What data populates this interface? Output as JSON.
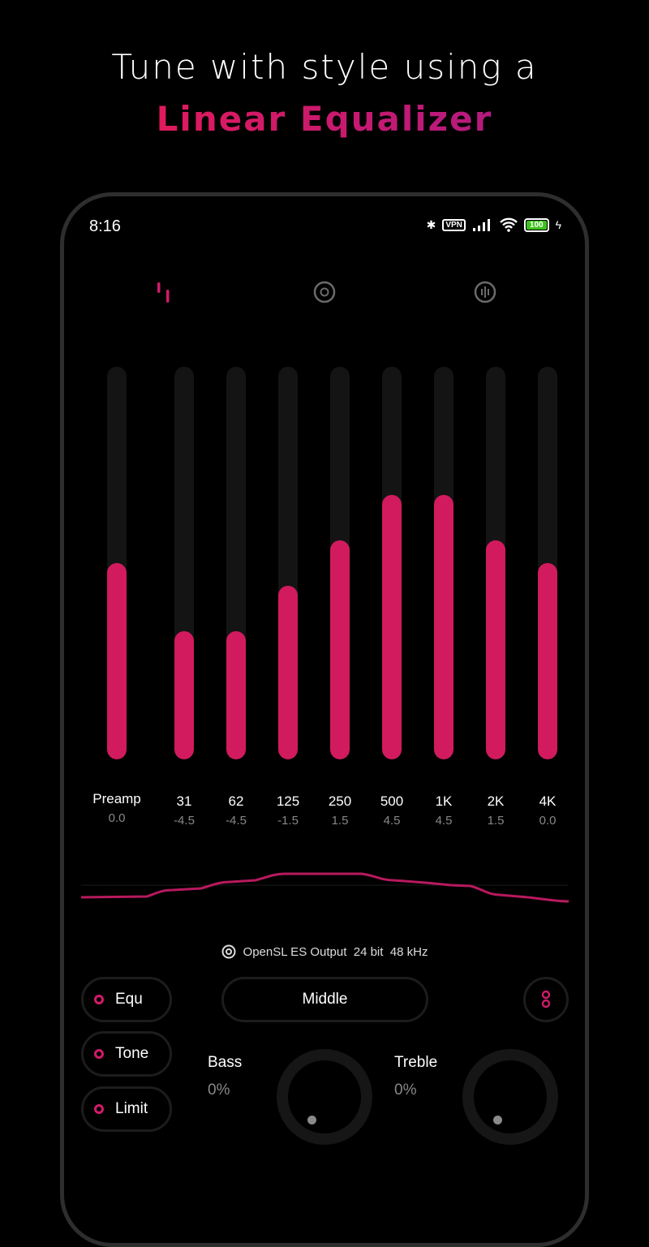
{
  "headline": {
    "line1": "Tune with style using a",
    "line2": "Linear Equalizer"
  },
  "status_bar": {
    "time": "8:16",
    "vpn": "VPN",
    "battery": "100",
    "icons": [
      "bluetooth-icon",
      "vpn-icon",
      "signal-icon",
      "wifi-icon",
      "battery-icon",
      "charging-icon"
    ]
  },
  "tabs": [
    {
      "icon": "equalizer-bars-icon",
      "active": true
    },
    {
      "icon": "disc-icon",
      "active": false
    },
    {
      "icon": "visualizer-icon",
      "active": false
    }
  ],
  "bands": [
    {
      "label": "Preamp",
      "value": "0.0",
      "gain": 0.0
    },
    {
      "label": "31",
      "value": "-4.5",
      "gain": -4.5
    },
    {
      "label": "62",
      "value": "-4.5",
      "gain": -4.5
    },
    {
      "label": "125",
      "value": "-1.5",
      "gain": -1.5
    },
    {
      "label": "250",
      "value": "1.5",
      "gain": 1.5
    },
    {
      "label": "500",
      "value": "4.5",
      "gain": 4.5
    },
    {
      "label": "1K",
      "value": "4.5",
      "gain": 4.5
    },
    {
      "label": "2K",
      "value": "1.5",
      "gain": 1.5
    },
    {
      "label": "4K",
      "value": "0.0",
      "gain": 0.0
    }
  ],
  "output": {
    "text": "OpenSL ES Output  24 bit  48 kHz"
  },
  "controls": {
    "equ": "Equ",
    "tone": "Tone",
    "limit": "Limit",
    "preset": "Middle",
    "bass_label": "Bass",
    "bass_value": "0%",
    "treble_label": "Treble",
    "treble_value": "0%"
  },
  "colors": {
    "accent": "#d21a5e",
    "background": "#000000",
    "track": "#141414"
  }
}
